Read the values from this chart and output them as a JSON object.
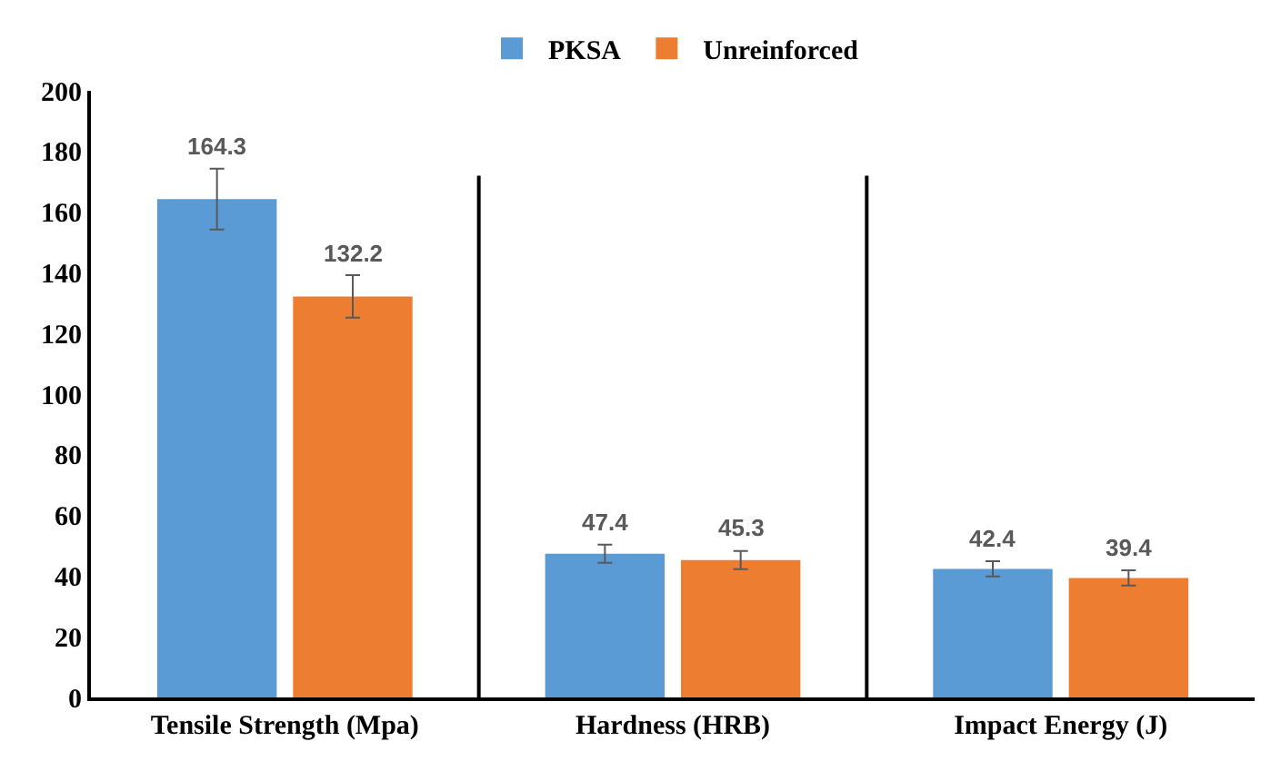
{
  "chart_data": {
    "type": "bar",
    "categories": [
      "Tensile Strength (Mpa)",
      "Hardness (HRB)",
      "Impact Energy (J)"
    ],
    "series": [
      {
        "name": "PKSA",
        "color": "#5b9bd5",
        "values": [
          164.3,
          47.4,
          42.4
        ],
        "errors": [
          10,
          3,
          2.5
        ]
      },
      {
        "name": "Unreinforced",
        "color": "#ed7d31",
        "values": [
          132.2,
          45.3,
          39.4
        ],
        "errors": [
          7,
          3,
          2.5
        ]
      }
    ],
    "ylim": [
      0,
      200
    ],
    "yticks": [
      0,
      20,
      40,
      60,
      80,
      100,
      120,
      140,
      160,
      180,
      200
    ],
    "grid": false,
    "legend": "top",
    "data_labels": true
  }
}
